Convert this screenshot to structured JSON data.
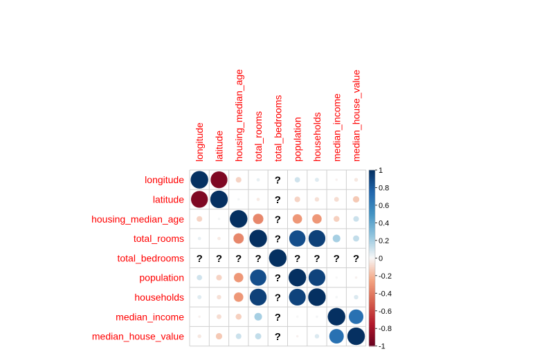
{
  "chart_data": {
    "type": "heatmap",
    "style": "corrplot-circle",
    "variables": [
      "longitude",
      "latitude",
      "housing_median_age",
      "total_rooms",
      "total_bedrooms",
      "population",
      "households",
      "median_income",
      "median_house_value"
    ],
    "missing_marker": "?",
    "matrix": [
      [
        1.0,
        -0.92,
        -0.11,
        0.04,
        null,
        0.1,
        0.06,
        -0.02,
        -0.05
      ],
      [
        -0.92,
        1.0,
        0.01,
        -0.04,
        null,
        -0.11,
        -0.07,
        -0.08,
        -0.14
      ],
      [
        -0.11,
        0.01,
        1.0,
        -0.36,
        null,
        -0.3,
        -0.3,
        -0.12,
        0.11
      ],
      [
        0.04,
        -0.04,
        -0.36,
        1.0,
        null,
        0.86,
        0.92,
        0.2,
        0.13
      ],
      [
        null,
        null,
        null,
        null,
        1.0,
        null,
        null,
        null,
        null
      ],
      [
        0.1,
        -0.11,
        -0.3,
        0.86,
        null,
        1.0,
        0.91,
        0.0,
        -0.02
      ],
      [
        0.06,
        -0.07,
        -0.3,
        0.92,
        null,
        0.91,
        1.0,
        0.01,
        0.07
      ],
      [
        -0.02,
        -0.08,
        -0.12,
        0.2,
        null,
        0.0,
        0.01,
        1.0,
        0.69
      ],
      [
        -0.05,
        -0.14,
        0.11,
        0.13,
        null,
        -0.02,
        0.07,
        0.69,
        1.0
      ]
    ],
    "colorbar": {
      "range": [
        -1,
        1
      ],
      "ticks": [
        "1",
        "0.8",
        "0.6",
        "0.4",
        "0.2",
        "0",
        "-0.2",
        "-0.4",
        "-0.6",
        "-0.8",
        "-1"
      ],
      "colors": {
        "negative": "#67001f",
        "neutral": "#f7f7f7",
        "positive": "#053061"
      }
    },
    "colors": {
      "label": "#ff0000",
      "grid": "#cfcfcf"
    }
  }
}
